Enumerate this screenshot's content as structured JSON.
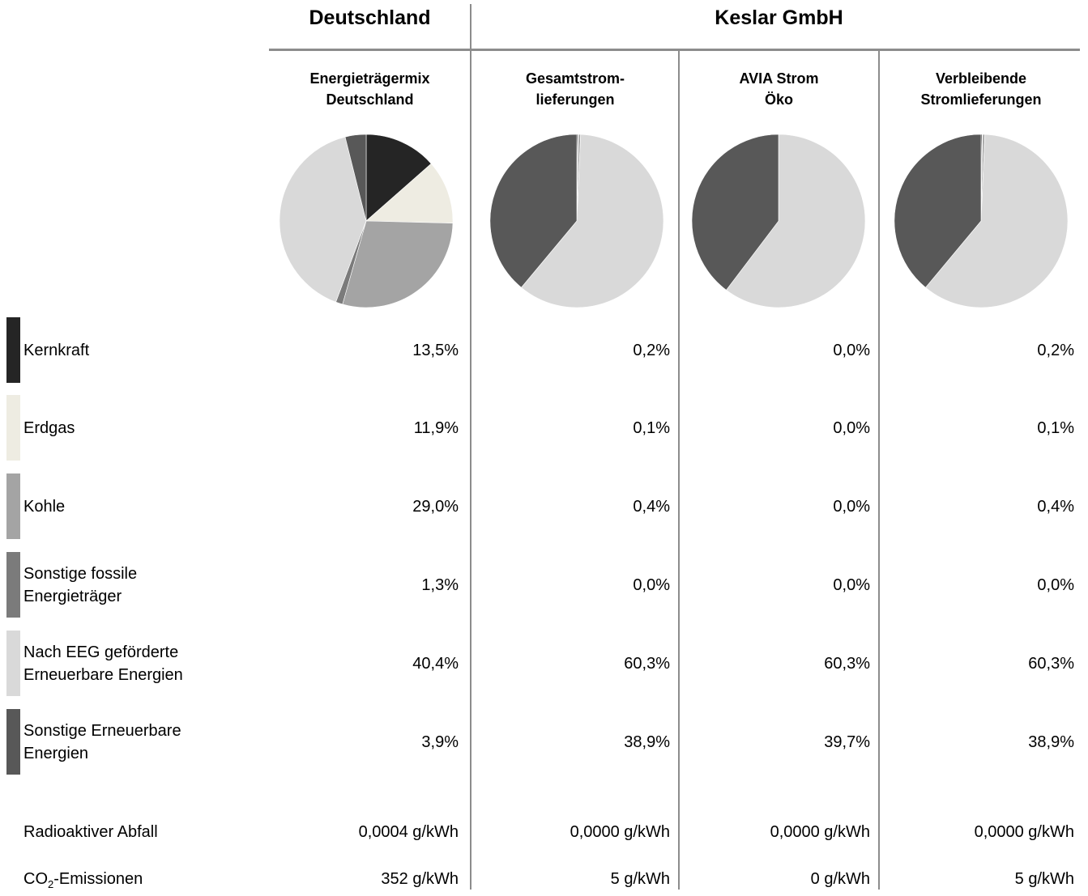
{
  "groups": {
    "deutschland": "Deutschland",
    "keslar": "Keslar GmbH"
  },
  "columns": [
    {
      "line1": "Energieträgermix",
      "line2": "Deutschland"
    },
    {
      "line1": "Gesamtstrom-",
      "line2": "lieferungen"
    },
    {
      "line1": "AVIA Strom",
      "line2": "Öko"
    },
    {
      "line1": "Verbleibende",
      "line2": "Stromlieferungen"
    }
  ],
  "categories": [
    {
      "line1": "Kernkraft",
      "line2": "",
      "color": "#252525"
    },
    {
      "line1": "Erdgas",
      "line2": "",
      "color": "#eeece2"
    },
    {
      "line1": "Kohle",
      "line2": "",
      "color": "#a4a4a4"
    },
    {
      "line1": "Sonstige fossile",
      "line2": "Energieträger",
      "color": "#7b7b7b"
    },
    {
      "line1": "Nach EEG geförderte",
      "line2": "Erneuerbare Energien",
      "color": "#d9d9d9"
    },
    {
      "line1": "Sonstige Erneuerbare",
      "line2": "Energien",
      "color": "#585858"
    }
  ],
  "values_text": [
    [
      "13,5%",
      "0,2%",
      "0,0%",
      "0,2%"
    ],
    [
      "11,9%",
      "0,1%",
      "0,0%",
      "0,1%"
    ],
    [
      "29,0%",
      "0,4%",
      "0,0%",
      "0,4%"
    ],
    [
      "1,3%",
      "0,0%",
      "0,0%",
      "0,0%"
    ],
    [
      "40,4%",
      "60,3%",
      "60,3%",
      "60,3%"
    ],
    [
      "3,9%",
      "38,9%",
      "39,7%",
      "38,9%"
    ]
  ],
  "extra_rows": [
    {
      "label": "Radioaktiver Abfall",
      "values": [
        "0,0004 g/kWh",
        "0,0000 g/kWh",
        "0,0000 g/kWh",
        "0,0000 g/kWh"
      ]
    },
    {
      "label_pre": "CO",
      "label_sub": "2",
      "label_post": "-Emissionen",
      "values": [
        "352 g/kWh",
        "5 g/kWh",
        "0 g/kWh",
        "5 g/kWh"
      ]
    }
  ],
  "chart_data": {
    "type": "pie",
    "categories": [
      "Kernkraft",
      "Erdgas",
      "Kohle",
      "Sonstige fossile Energieträger",
      "Nach EEG geförderte Erneuerbare Energien",
      "Sonstige Erneuerbare Energien"
    ],
    "series": [
      {
        "name": "Energieträgermix Deutschland",
        "values": [
          13.5,
          11.9,
          29.0,
          1.3,
          40.4,
          3.9
        ]
      },
      {
        "name": "Gesamtstromlieferungen",
        "values": [
          0.2,
          0.1,
          0.4,
          0.0,
          60.3,
          38.9
        ]
      },
      {
        "name": "AVIA Strom Öko",
        "values": [
          0.0,
          0.0,
          0.0,
          0.0,
          60.3,
          39.7
        ]
      },
      {
        "name": "Verbleibende Stromlieferungen",
        "values": [
          0.2,
          0.1,
          0.4,
          0.0,
          60.3,
          38.9
        ]
      }
    ],
    "title": "",
    "legend": "left"
  }
}
